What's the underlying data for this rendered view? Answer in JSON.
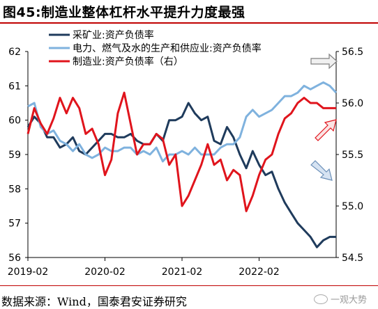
{
  "title": "图45:制造业整体杠杆水平提升力度最强",
  "source": "数据来源：Wind，国泰君安证券研究",
  "watermark": "一观大势",
  "chart_data": {
    "type": "line",
    "x_ticks": [
      "2019-02",
      "2020-02",
      "2021-02",
      "2022-02"
    ],
    "x_range": [
      0,
      48
    ],
    "y_left_range": [
      56,
      62
    ],
    "y_left_ticks": [
      "56",
      "57",
      "58",
      "59",
      "60",
      "61",
      "62"
    ],
    "y_right_range": [
      54.5,
      56.5
    ],
    "y_right_ticks": [
      "54.5",
      "55.0",
      "55.5",
      "56.0",
      "56.5"
    ],
    "grid": false,
    "legend_position": "top-left",
    "series": [
      {
        "name": "采矿业:资产负债率",
        "axis": "left",
        "color": "#1f3b5c",
        "x": [
          0,
          1,
          2,
          3,
          4,
          5,
          6,
          7,
          8,
          9,
          10,
          11,
          12,
          13,
          14,
          15,
          16,
          17,
          18,
          19,
          20,
          21,
          22,
          23,
          24,
          25,
          26,
          27,
          28,
          29,
          30,
          31,
          32,
          33,
          34,
          35,
          36,
          37,
          38,
          39,
          40,
          41,
          42,
          43,
          44,
          45,
          46,
          47,
          48
        ],
        "y": [
          59.8,
          60.1,
          59.9,
          59.5,
          59.5,
          59.2,
          59.3,
          59.5,
          59.1,
          59.0,
          59.2,
          59.4,
          59.6,
          59.6,
          59.5,
          59.5,
          59.6,
          59.4,
          59.3,
          59.3,
          59.6,
          59.4,
          60.0,
          60.0,
          60.1,
          60.5,
          60.2,
          60.0,
          60.1,
          59.4,
          59.3,
          59.8,
          59.5,
          59.0,
          58.6,
          59.1,
          58.7,
          58.4,
          58.5,
          58.0,
          57.6,
          57.3,
          57.0,
          56.8,
          56.6,
          56.3,
          56.5,
          56.6,
          56.6
        ]
      },
      {
        "name": "电力、燃气及水的生产和供应业:资产负债率",
        "axis": "left",
        "color": "#7fb2de",
        "x": [
          0,
          1,
          2,
          3,
          4,
          5,
          6,
          7,
          8,
          9,
          10,
          11,
          12,
          13,
          14,
          15,
          16,
          17,
          18,
          19,
          20,
          21,
          22,
          23,
          24,
          25,
          26,
          27,
          28,
          29,
          30,
          31,
          32,
          33,
          34,
          35,
          36,
          37,
          38,
          39,
          40,
          41,
          42,
          43,
          44,
          45,
          46,
          47,
          48
        ],
        "y": [
          60.4,
          60.5,
          59.8,
          59.6,
          59.7,
          59.4,
          59.3,
          59.1,
          59.3,
          59.0,
          58.9,
          59.0,
          59.2,
          59.1,
          59.1,
          59.2,
          59.2,
          59.0,
          59.1,
          59.0,
          59.2,
          58.8,
          59.0,
          59.0,
          59.1,
          59.0,
          59.2,
          59.0,
          59.0,
          59.0,
          59.2,
          59.3,
          59.3,
          59.5,
          60.1,
          60.3,
          60.1,
          60.2,
          60.3,
          60.5,
          60.7,
          60.7,
          60.8,
          61.0,
          60.9,
          61.0,
          61.1,
          61.0,
          60.8
        ]
      },
      {
        "name": "制造业:资产负债率（右）",
        "axis": "right",
        "color": "#e0141c",
        "x": [
          0,
          1,
          2,
          3,
          4,
          5,
          6,
          7,
          8,
          9,
          10,
          11,
          12,
          13,
          14,
          15,
          16,
          17,
          18,
          19,
          20,
          21,
          22,
          23,
          24,
          25,
          26,
          27,
          28,
          29,
          30,
          31,
          32,
          33,
          34,
          35,
          36,
          37,
          38,
          39,
          40,
          41,
          42,
          43,
          44,
          45,
          46,
          47,
          48
        ],
        "y": [
          55.7,
          55.95,
          55.8,
          55.7,
          55.85,
          56.05,
          55.9,
          56.05,
          55.95,
          55.7,
          55.75,
          55.6,
          55.3,
          55.45,
          55.9,
          56.1,
          55.8,
          55.5,
          55.6,
          55.6,
          55.7,
          55.65,
          55.4,
          55.5,
          55.0,
          55.1,
          55.25,
          55.4,
          55.6,
          55.4,
          55.45,
          55.25,
          55.35,
          55.3,
          54.95,
          55.1,
          55.3,
          55.45,
          55.5,
          55.7,
          55.85,
          55.9,
          56.0,
          56.05,
          56.0,
          56.0,
          55.95,
          55.95,
          55.95
        ]
      }
    ]
  }
}
